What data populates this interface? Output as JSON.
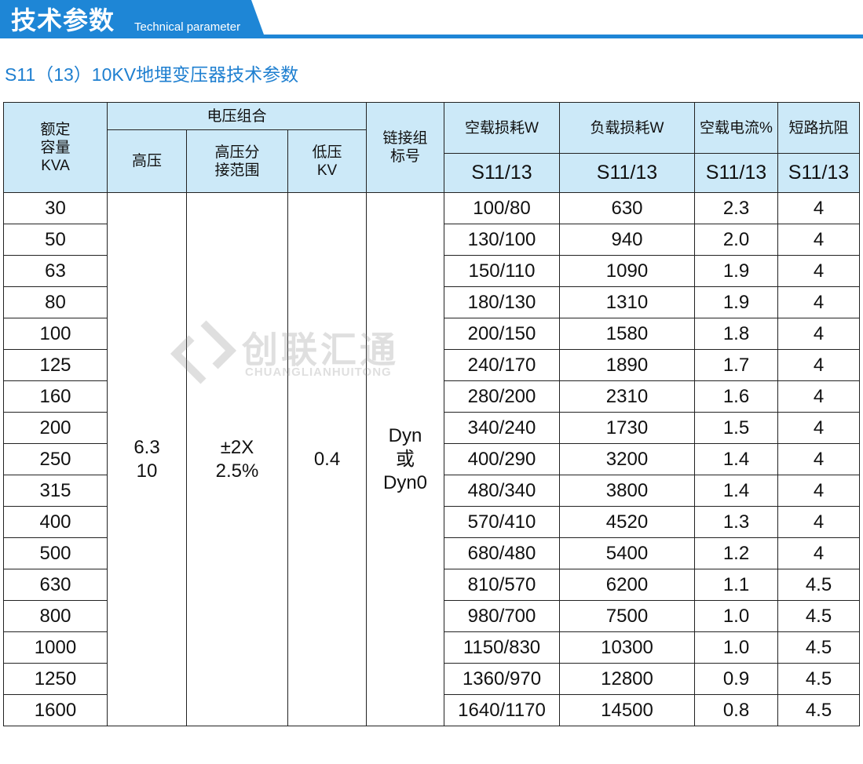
{
  "header": {
    "title": "技术参数",
    "subtitle": "Technical parameter"
  },
  "heading": "S11（13）10KV地埋变压器技术参数",
  "watermark": {
    "name": "创联汇通",
    "latin": "CHUANGLIANHUITONG"
  },
  "table": {
    "headers": {
      "capacity": "额定\n容量\nKVA",
      "voltage_group": "电压组合",
      "high_voltage": "高压",
      "tap_range": "高压分\n接范围",
      "low_voltage": "低压\nKV",
      "connection": "链接组\n标号",
      "no_load_loss": "空载损耗W",
      "load_loss": "负载损耗W",
      "no_load_current": "空载电流%",
      "impedance": "短路抗阻",
      "models": [
        "S11/13",
        "S11/13",
        "S11/13",
        "S11/13"
      ]
    },
    "merged": {
      "high_voltage": "6.3\n10",
      "tap_range": "±2X\n2.5%",
      "low_voltage": "0.4",
      "connection": "Dyn\n或\nDyn0"
    },
    "rows": [
      [
        "30",
        "100/80",
        "630",
        "2.3",
        "4"
      ],
      [
        "50",
        "130/100",
        "940",
        "2.0",
        "4"
      ],
      [
        "63",
        "150/110",
        "1090",
        "1.9",
        "4"
      ],
      [
        "80",
        "180/130",
        "1310",
        "1.9",
        "4"
      ],
      [
        "100",
        "200/150",
        "1580",
        "1.8",
        "4"
      ],
      [
        "125",
        "240/170",
        "1890",
        "1.7",
        "4"
      ],
      [
        "160",
        "280/200",
        "2310",
        "1.6",
        "4"
      ],
      [
        "200",
        "340/240",
        "1730",
        "1.5",
        "4"
      ],
      [
        "250",
        "400/290",
        "3200",
        "1.4",
        "4"
      ],
      [
        "315",
        "480/340",
        "3800",
        "1.4",
        "4"
      ],
      [
        "400",
        "570/410",
        "4520",
        "1.3",
        "4"
      ],
      [
        "500",
        "680/480",
        "5400",
        "1.2",
        "4"
      ],
      [
        "630",
        "810/570",
        "6200",
        "1.1",
        "4.5"
      ],
      [
        "800",
        "980/700",
        "7500",
        "1.0",
        "4.5"
      ],
      [
        "1000",
        "1150/830",
        "10300",
        "1.0",
        "4.5"
      ],
      [
        "1250",
        "1360/970",
        "12800",
        "0.9",
        "4.5"
      ],
      [
        "1600",
        "1640/1170",
        "14500",
        "0.8",
        "4.5"
      ]
    ]
  }
}
